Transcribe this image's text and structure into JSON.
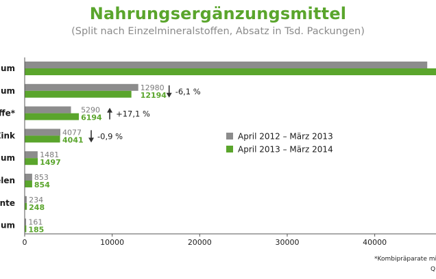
{
  "title": "Nahrungsergänzungsmittel",
  "subtitle": "(Split nach Einzelmineralstoffen, Absatz in Tsd. Packungen)",
  "colors": {
    "prev": "#8c8c8c",
    "curr": "#5aa52c",
    "title": "#5aa52c",
    "changeArrow": "#333333"
  },
  "chart_data": {
    "type": "bar",
    "orientation": "horizontal",
    "categories": [
      "sium",
      "sium",
      "ffe*",
      "Zink",
      "lium",
      "elen",
      "ente",
      "rium"
    ],
    "series": [
      {
        "name": "April 2012 – März 2013",
        "values": [
          46000,
          12980,
          5290,
          4077,
          1481,
          853,
          234,
          161
        ]
      },
      {
        "name": "April 2013 – März 2014",
        "values": [
          47000,
          12194,
          6194,
          4041,
          1497,
          854,
          248,
          185
        ]
      }
    ],
    "value_labels": {
      "prev": [
        "",
        "12980",
        "5290",
        "4077",
        "1481",
        "853",
        "234",
        "161"
      ],
      "curr": [
        "",
        "12194",
        "6194",
        "4041",
        "1497",
        "854",
        "248",
        "185"
      ]
    },
    "changes": [
      {
        "index": 1,
        "direction": "down",
        "label": "-6,1 %"
      },
      {
        "index": 2,
        "direction": "up",
        "label": "+17,1 %"
      },
      {
        "index": 3,
        "direction": "down",
        "label": "-0,9 %"
      }
    ],
    "xticks": [
      "0",
      "10000",
      "20000",
      "30000",
      "40000"
    ],
    "xtick_values": [
      0,
      10000,
      20000,
      30000,
      40000
    ],
    "xlim": [
      0,
      47000
    ],
    "legend_position": "center-right",
    "grid": false
  },
  "footnotes": {
    "note": "*Kombipräparate mi",
    "source": "Q"
  }
}
